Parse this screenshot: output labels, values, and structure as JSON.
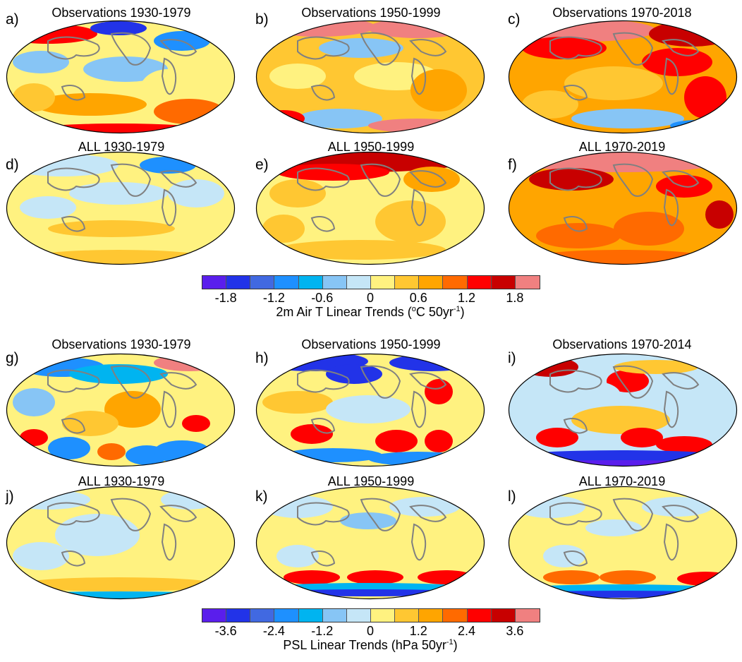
{
  "panels": [
    {
      "label": "a)",
      "title": "Observations 1930-1979",
      "style": "obs_mixed"
    },
    {
      "label": "b)",
      "title": "Observations 1950-1999",
      "style": "obs_warm"
    },
    {
      "label": "c)",
      "title": "Observations 1970-2018",
      "style": "obs_hot"
    },
    {
      "label": "d)",
      "title": "ALL 1930-1979",
      "style": "all_cool"
    },
    {
      "label": "e)",
      "title": "ALL 1950-1999",
      "style": "all_warm"
    },
    {
      "label": "f)",
      "title": "ALL 1970-2019",
      "style": "all_hot"
    },
    {
      "label": "g)",
      "title": "Observations 1930-1979",
      "style": "psl_obs1"
    },
    {
      "label": "h)",
      "title": "Observations 1950-1999",
      "style": "psl_obs2"
    },
    {
      "label": "i)",
      "title": "Observations 1970-2014",
      "style": "psl_obs3"
    },
    {
      "label": "j)",
      "title": "ALL 1930-1979",
      "style": "psl_all1"
    },
    {
      "label": "k)",
      "title": "ALL 1950-1999",
      "style": "psl_all2"
    },
    {
      "label": "l)",
      "title": "ALL 1970-2019",
      "style": "psl_all3"
    }
  ],
  "colorbars": [
    {
      "ticks": [
        "-1.8",
        "-1.2",
        "-0.6",
        "0",
        "0.6",
        "1.2",
        "1.8"
      ],
      "title_main": "2m Air T Linear Trends (",
      "title_o": "o",
      "title_mid": "C 50yr",
      "title_exp": "-1",
      "title_end": ")"
    },
    {
      "ticks": [
        "-3.6",
        "-2.4",
        "-1.2",
        "0",
        "1.2",
        "2.4",
        "3.6"
      ],
      "title_main": "PSL Linear Trends (hPa 50yr",
      "title_exp": "-1",
      "title_end": ")"
    }
  ],
  "palette": [
    "#5a1eec",
    "#2233e8",
    "#4169e1",
    "#1e90ff",
    "#00b4f0",
    "#87c5f5",
    "#c5e6f7",
    "#fff280",
    "#ffc732",
    "#ffa500",
    "#ff6a00",
    "#ff0000",
    "#c80000",
    "#f08080"
  ]
}
